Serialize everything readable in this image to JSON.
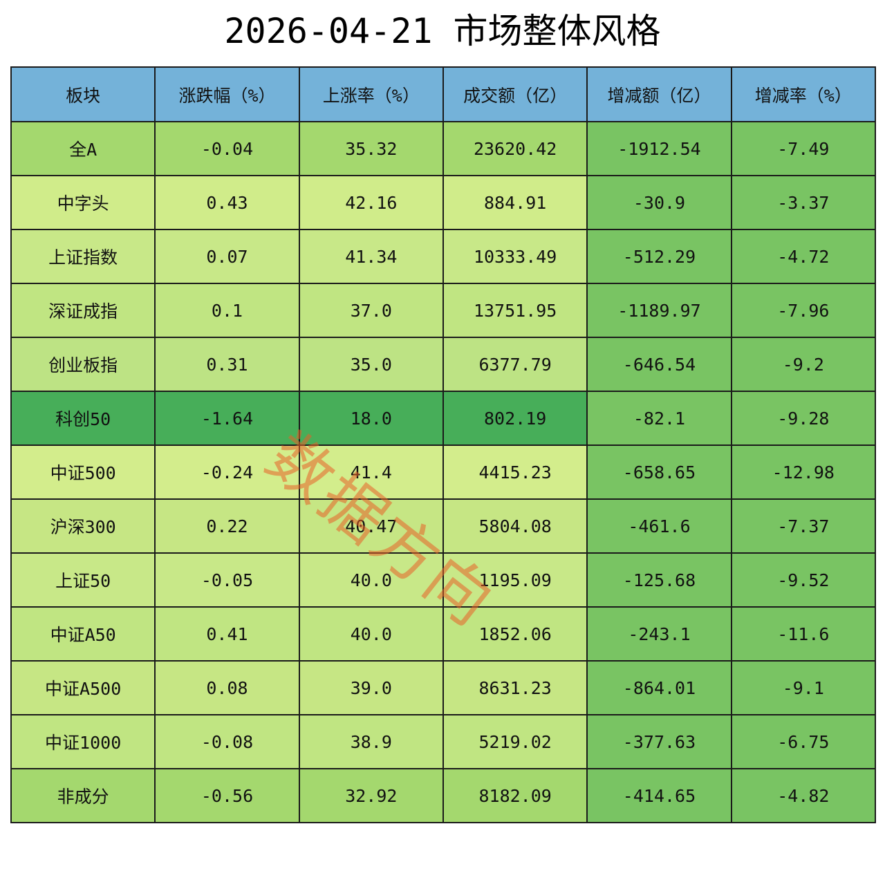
{
  "title": "2026-04-21 市场整体风格",
  "watermark": "数据方向",
  "chart_data": {
    "type": "table",
    "title": "2026-04-21 市场整体风格",
    "columns": [
      "板块",
      "涨跌幅（%）",
      "上涨率（%）",
      "成交额（亿）",
      "增减额（亿）",
      "增减率（%）"
    ],
    "rows": [
      [
        "全A",
        "-0.04",
        "35.32",
        "23620.42",
        "-1912.54",
        "-7.49"
      ],
      [
        "中字头",
        "0.43",
        "42.16",
        "884.91",
        "-30.9",
        "-3.37"
      ],
      [
        "上证指数",
        "0.07",
        "41.34",
        "10333.49",
        "-512.29",
        "-4.72"
      ],
      [
        "深证成指",
        "0.1",
        "37.0",
        "13751.95",
        "-1189.97",
        "-7.96"
      ],
      [
        "创业板指",
        "0.31",
        "35.0",
        "6377.79",
        "-646.54",
        "-9.2"
      ],
      [
        "科创50",
        "-1.64",
        "18.0",
        "802.19",
        "-82.1",
        "-9.28"
      ],
      [
        "中证500",
        "-0.24",
        "41.4",
        "4415.23",
        "-658.65",
        "-12.98"
      ],
      [
        "沪深300",
        "0.22",
        "40.47",
        "5804.08",
        "-461.6",
        "-7.37"
      ],
      [
        "上证50",
        "-0.05",
        "40.0",
        "1195.09",
        "-125.68",
        "-9.52"
      ],
      [
        "中证A50",
        "0.41",
        "40.0",
        "1852.06",
        "-243.1",
        "-11.6"
      ],
      [
        "中证A500",
        "0.08",
        "39.0",
        "8631.23",
        "-864.01",
        "-9.1"
      ],
      [
        "中证1000",
        "-0.08",
        "38.9",
        "5219.02",
        "-377.63",
        "-6.75"
      ],
      [
        "非成分",
        "-0.56",
        "32.92",
        "8182.09",
        "-414.65",
        "-4.82"
      ]
    ],
    "colors": {
      "header": "#74b2d9",
      "cells": [
        [
          "#a4d86e",
          "#a4d86e",
          "#a4d86e",
          "#a4d86e",
          "#79c463",
          "#79c463"
        ],
        [
          "#d0ec8a",
          "#d0ec8a",
          "#d0ec8a",
          "#d0ec8a",
          "#79c463",
          "#79c463"
        ],
        [
          "#c8e888",
          "#c8e888",
          "#c8e888",
          "#c8e888",
          "#79c463",
          "#79c463"
        ],
        [
          "#c0e582",
          "#c0e582",
          "#c0e582",
          "#c0e582",
          "#79c463",
          "#79c463"
        ],
        [
          "#bde384",
          "#bde384",
          "#bde384",
          "#bde384",
          "#79c463",
          "#79c463"
        ],
        [
          "#47ae59",
          "#47ae59",
          "#47ae59",
          "#47ae59",
          "#79c463",
          "#79c463"
        ],
        [
          "#d3ed8c",
          "#d3ed8c",
          "#d3ed8c",
          "#d3ed8c",
          "#79c463",
          "#79c463"
        ],
        [
          "#c6e684",
          "#c6e684",
          "#c6e684",
          "#c6e684",
          "#79c463",
          "#79c463"
        ],
        [
          "#c8e888",
          "#c8e888",
          "#c8e888",
          "#c8e888",
          "#79c463",
          "#79c463"
        ],
        [
          "#c0e582",
          "#c0e582",
          "#c0e582",
          "#c0e582",
          "#79c463",
          "#79c463"
        ],
        [
          "#c6e684",
          "#c6e684",
          "#c6e684",
          "#c6e684",
          "#79c463",
          "#79c463"
        ],
        [
          "#c0e582",
          "#c0e582",
          "#c0e582",
          "#c0e582",
          "#79c463",
          "#79c463"
        ],
        [
          "#a4d86e",
          "#a4d86e",
          "#a4d86e",
          "#a4d86e",
          "#79c463",
          "#79c463"
        ]
      ]
    }
  }
}
